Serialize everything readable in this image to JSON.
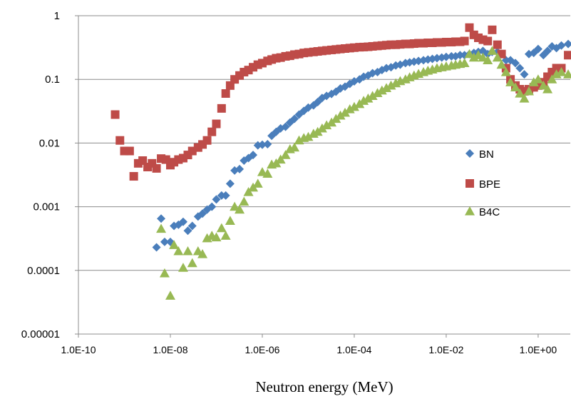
{
  "chart_data": {
    "type": "scatter",
    "title": "",
    "xlabel": "Neutron energy (MeV)",
    "ylabel": "",
    "x_scale": "log",
    "y_scale": "log",
    "xlim": [
      1e-10,
      5
    ],
    "ylim": [
      1e-05,
      1
    ],
    "grid": "horizontal",
    "legend_position": "right",
    "x_ticks": [
      {
        "value": 1e-10,
        "label": "1.0E-10"
      },
      {
        "value": 1e-08,
        "label": "1.0E-08"
      },
      {
        "value": 1e-06,
        "label": "1.0E-06"
      },
      {
        "value": 0.0001,
        "label": "1.0E-04"
      },
      {
        "value": 0.01,
        "label": "1.0E-02"
      },
      {
        "value": 1,
        "label": "1.0E+00"
      }
    ],
    "y_ticks": [
      {
        "value": 1,
        "label": "1"
      },
      {
        "value": 0.1,
        "label": "0.1"
      },
      {
        "value": 0.01,
        "label": "0.01"
      },
      {
        "value": 0.001,
        "label": "0.001"
      },
      {
        "value": 0.0001,
        "label": "0.0001"
      },
      {
        "value": 1e-05,
        "label": "0.00001"
      }
    ],
    "series": [
      {
        "name": "BN",
        "marker": "diamond",
        "color": "#4A7EBB",
        "points": [
          [
            5e-09,
            0.00023
          ],
          [
            6.3e-09,
            0.00065
          ],
          [
            7.5e-09,
            0.00028
          ],
          [
            1e-08,
            0.00028
          ],
          [
            1.2e-08,
            0.0005
          ],
          [
            1.5e-08,
            0.00052
          ],
          [
            1.9e-08,
            0.00058
          ],
          [
            2.4e-08,
            0.00042
          ],
          [
            3e-08,
            0.0005
          ],
          [
            4e-08,
            0.0007
          ],
          [
            5e-08,
            0.00078
          ],
          [
            6.3e-08,
            0.0009
          ],
          [
            8e-08,
            0.001
          ],
          [
            1e-07,
            0.0013
          ],
          [
            1.3e-07,
            0.0015
          ],
          [
            1.6e-07,
            0.0015
          ],
          [
            2e-07,
            0.0023
          ],
          [
            2.5e-07,
            0.0037
          ],
          [
            3.2e-07,
            0.0039
          ],
          [
            4e-07,
            0.0053
          ],
          [
            5e-07,
            0.0058
          ],
          [
            6.3e-07,
            0.0065
          ],
          [
            8e-07,
            0.0092
          ],
          [
            1e-06,
            0.0094
          ],
          [
            1.3e-06,
            0.0096
          ],
          [
            1.6e-06,
            0.013
          ],
          [
            2e-06,
            0.015
          ],
          [
            2.5e-06,
            0.017
          ],
          [
            3.2e-06,
            0.018
          ],
          [
            4e-06,
            0.021
          ],
          [
            5e-06,
            0.024
          ],
          [
            6.3e-06,
            0.028
          ],
          [
            8e-06,
            0.032
          ],
          [
            1e-05,
            0.036
          ],
          [
            1.3e-05,
            0.039
          ],
          [
            1.6e-05,
            0.044
          ],
          [
            2e-05,
            0.051
          ],
          [
            2.5e-05,
            0.055
          ],
          [
            3.2e-05,
            0.059
          ],
          [
            4e-05,
            0.064
          ],
          [
            5e-05,
            0.072
          ],
          [
            6.3e-05,
            0.077
          ],
          [
            8e-05,
            0.085
          ],
          [
            0.0001,
            0.093
          ],
          [
            0.00013,
            0.1
          ],
          [
            0.00016,
            0.11
          ],
          [
            0.0002,
            0.115
          ],
          [
            0.00025,
            0.125
          ],
          [
            0.00032,
            0.13
          ],
          [
            0.0004,
            0.14
          ],
          [
            0.0005,
            0.15
          ],
          [
            0.00063,
            0.155
          ],
          [
            0.0008,
            0.165
          ],
          [
            0.001,
            0.17
          ],
          [
            0.0013,
            0.18
          ],
          [
            0.0016,
            0.185
          ],
          [
            0.002,
            0.19
          ],
          [
            0.0025,
            0.195
          ],
          [
            0.0032,
            0.2
          ],
          [
            0.004,
            0.205
          ],
          [
            0.005,
            0.21
          ],
          [
            0.0063,
            0.215
          ],
          [
            0.008,
            0.22
          ],
          [
            0.01,
            0.225
          ],
          [
            0.013,
            0.23
          ],
          [
            0.016,
            0.23
          ],
          [
            0.02,
            0.24
          ],
          [
            0.025,
            0.24
          ],
          [
            0.032,
            0.25
          ],
          [
            0.04,
            0.26
          ],
          [
            0.05,
            0.27
          ],
          [
            0.063,
            0.28
          ],
          [
            0.08,
            0.25
          ],
          [
            0.1,
            0.27
          ],
          [
            0.13,
            0.27
          ],
          [
            0.16,
            0.25
          ],
          [
            0.2,
            0.2
          ],
          [
            0.25,
            0.2
          ],
          [
            0.32,
            0.18
          ],
          [
            0.4,
            0.15
          ],
          [
            0.5,
            0.12
          ],
          [
            0.63,
            0.25
          ],
          [
            0.8,
            0.26
          ],
          [
            1.0,
            0.3
          ],
          [
            1.3,
            0.24
          ],
          [
            1.6,
            0.28
          ],
          [
            2.0,
            0.33
          ],
          [
            2.5,
            0.31
          ],
          [
            3.2,
            0.34
          ],
          [
            4.5,
            0.36
          ]
        ]
      },
      {
        "name": "BPE",
        "marker": "square",
        "color": "#BE4B48",
        "points": [
          [
            6.3e-10,
            0.028
          ],
          [
            8e-10,
            0.011
          ],
          [
            1e-09,
            0.0075
          ],
          [
            1.3e-09,
            0.0075
          ],
          [
            1.6e-09,
            0.003
          ],
          [
            2e-09,
            0.0048
          ],
          [
            2.5e-09,
            0.0053
          ],
          [
            3.2e-09,
            0.0042
          ],
          [
            4e-09,
            0.0048
          ],
          [
            5e-09,
            0.004
          ],
          [
            6.3e-09,
            0.0057
          ],
          [
            8e-09,
            0.0055
          ],
          [
            1e-08,
            0.0045
          ],
          [
            1.2e-08,
            0.005
          ],
          [
            1.5e-08,
            0.0055
          ],
          [
            1.9e-08,
            0.0058
          ],
          [
            2.4e-08,
            0.0065
          ],
          [
            3e-08,
            0.0075
          ],
          [
            4e-08,
            0.0085
          ],
          [
            5e-08,
            0.0095
          ],
          [
            6.3e-08,
            0.011
          ],
          [
            8e-08,
            0.015
          ],
          [
            1e-07,
            0.02
          ],
          [
            1.3e-07,
            0.035
          ],
          [
            1.6e-07,
            0.06
          ],
          [
            2e-07,
            0.08
          ],
          [
            2.5e-07,
            0.1
          ],
          [
            3.2e-07,
            0.115
          ],
          [
            4e-07,
            0.13
          ],
          [
            5e-07,
            0.14
          ],
          [
            6.3e-07,
            0.155
          ],
          [
            8e-07,
            0.17
          ],
          [
            1e-06,
            0.18
          ],
          [
            1.3e-06,
            0.195
          ],
          [
            1.6e-06,
            0.205
          ],
          [
            2e-06,
            0.215
          ],
          [
            2.5e-06,
            0.22
          ],
          [
            3.2e-06,
            0.23
          ],
          [
            4e-06,
            0.235
          ],
          [
            5e-06,
            0.245
          ],
          [
            6.3e-06,
            0.25
          ],
          [
            8e-06,
            0.26
          ],
          [
            1e-05,
            0.265
          ],
          [
            1.3e-05,
            0.27
          ],
          [
            1.6e-05,
            0.275
          ],
          [
            2e-05,
            0.28
          ],
          [
            2.5e-05,
            0.285
          ],
          [
            3.2e-05,
            0.29
          ],
          [
            4e-05,
            0.295
          ],
          [
            5e-05,
            0.3
          ],
          [
            6.3e-05,
            0.305
          ],
          [
            8e-05,
            0.31
          ],
          [
            0.0001,
            0.315
          ],
          [
            0.00013,
            0.32
          ],
          [
            0.00016,
            0.322
          ],
          [
            0.0002,
            0.325
          ],
          [
            0.00025,
            0.33
          ],
          [
            0.00032,
            0.335
          ],
          [
            0.0004,
            0.34
          ],
          [
            0.0005,
            0.345
          ],
          [
            0.00063,
            0.35
          ],
          [
            0.0008,
            0.35
          ],
          [
            0.001,
            0.355
          ],
          [
            0.0013,
            0.36
          ],
          [
            0.0016,
            0.36
          ],
          [
            0.002,
            0.365
          ],
          [
            0.0025,
            0.37
          ],
          [
            0.0032,
            0.37
          ],
          [
            0.004,
            0.375
          ],
          [
            0.005,
            0.375
          ],
          [
            0.0063,
            0.38
          ],
          [
            0.008,
            0.38
          ],
          [
            0.01,
            0.385
          ],
          [
            0.013,
            0.385
          ],
          [
            0.016,
            0.39
          ],
          [
            0.02,
            0.39
          ],
          [
            0.025,
            0.4
          ],
          [
            0.032,
            0.65
          ],
          [
            0.04,
            0.5
          ],
          [
            0.05,
            0.45
          ],
          [
            0.063,
            0.42
          ],
          [
            0.08,
            0.4
          ],
          [
            0.1,
            0.6
          ],
          [
            0.13,
            0.35
          ],
          [
            0.16,
            0.25
          ],
          [
            0.2,
            0.15
          ],
          [
            0.25,
            0.1
          ],
          [
            0.32,
            0.08
          ],
          [
            0.4,
            0.07
          ],
          [
            0.5,
            0.065
          ],
          [
            0.63,
            0.07
          ],
          [
            0.8,
            0.075
          ],
          [
            1.0,
            0.08
          ],
          [
            1.3,
            0.09
          ],
          [
            1.6,
            0.11
          ],
          [
            2.0,
            0.13
          ],
          [
            2.5,
            0.15
          ],
          [
            3.2,
            0.15
          ],
          [
            4.5,
            0.24
          ]
        ]
      },
      {
        "name": "B4C",
        "marker": "triangle",
        "color": "#98B954",
        "points": [
          [
            6.3e-09,
            0.00045
          ],
          [
            7.5e-09,
            9e-05
          ],
          [
            1e-08,
            4e-05
          ],
          [
            1.2e-08,
            0.00025
          ],
          [
            1.5e-08,
            0.0002
          ],
          [
            1.9e-08,
            0.00011
          ],
          [
            2.4e-08,
            0.0002
          ],
          [
            3e-08,
            0.00013
          ],
          [
            4e-08,
            0.0002
          ],
          [
            5e-08,
            0.00018
          ],
          [
            6.3e-08,
            0.00032
          ],
          [
            8e-08,
            0.00035
          ],
          [
            1e-07,
            0.00033
          ],
          [
            1.3e-07,
            0.00046
          ],
          [
            1.6e-07,
            0.00035
          ],
          [
            2e-07,
            0.0006
          ],
          [
            2.5e-07,
            0.001
          ],
          [
            3.2e-07,
            0.0009
          ],
          [
            4e-07,
            0.0012
          ],
          [
            5e-07,
            0.0017
          ],
          [
            6.3e-07,
            0.002
          ],
          [
            8e-07,
            0.0023
          ],
          [
            1e-06,
            0.0035
          ],
          [
            1.3e-06,
            0.0033
          ],
          [
            1.6e-06,
            0.0046
          ],
          [
            2e-06,
            0.0048
          ],
          [
            2.5e-06,
            0.0055
          ],
          [
            3.2e-06,
            0.0065
          ],
          [
            4e-06,
            0.008
          ],
          [
            5e-06,
            0.0085
          ],
          [
            6.3e-06,
            0.011
          ],
          [
            8e-06,
            0.012
          ],
          [
            1e-05,
            0.0125
          ],
          [
            1.3e-05,
            0.014
          ],
          [
            1.6e-05,
            0.015
          ],
          [
            2e-05,
            0.017
          ],
          [
            2.5e-05,
            0.019
          ],
          [
            3.2e-05,
            0.021
          ],
          [
            4e-05,
            0.024
          ],
          [
            5e-05,
            0.027
          ],
          [
            6.3e-05,
            0.03
          ],
          [
            8e-05,
            0.034
          ],
          [
            0.0001,
            0.037
          ],
          [
            0.00013,
            0.041
          ],
          [
            0.00016,
            0.046
          ],
          [
            0.0002,
            0.05
          ],
          [
            0.00025,
            0.055
          ],
          [
            0.00032,
            0.061
          ],
          [
            0.0004,
            0.067
          ],
          [
            0.0005,
            0.073
          ],
          [
            0.00063,
            0.08
          ],
          [
            0.0008,
            0.087
          ],
          [
            0.001,
            0.094
          ],
          [
            0.0013,
            0.1
          ],
          [
            0.0016,
            0.108
          ],
          [
            0.002,
            0.115
          ],
          [
            0.0025,
            0.122
          ],
          [
            0.0032,
            0.13
          ],
          [
            0.004,
            0.137
          ],
          [
            0.005,
            0.143
          ],
          [
            0.0063,
            0.15
          ],
          [
            0.008,
            0.155
          ],
          [
            0.01,
            0.16
          ],
          [
            0.013,
            0.165
          ],
          [
            0.016,
            0.17
          ],
          [
            0.02,
            0.175
          ],
          [
            0.025,
            0.18
          ],
          [
            0.032,
            0.25
          ],
          [
            0.04,
            0.22
          ],
          [
            0.05,
            0.24
          ],
          [
            0.063,
            0.22
          ],
          [
            0.08,
            0.2
          ],
          [
            0.1,
            0.28
          ],
          [
            0.13,
            0.22
          ],
          [
            0.16,
            0.17
          ],
          [
            0.2,
            0.13
          ],
          [
            0.25,
            0.09
          ],
          [
            0.32,
            0.075
          ],
          [
            0.4,
            0.06
          ],
          [
            0.5,
            0.05
          ],
          [
            0.63,
            0.065
          ],
          [
            0.8,
            0.09
          ],
          [
            1.0,
            0.1
          ],
          [
            1.3,
            0.08
          ],
          [
            1.6,
            0.07
          ],
          [
            2.0,
            0.1
          ],
          [
            2.5,
            0.12
          ],
          [
            3.2,
            0.13
          ],
          [
            4.5,
            0.12
          ]
        ]
      }
    ]
  }
}
